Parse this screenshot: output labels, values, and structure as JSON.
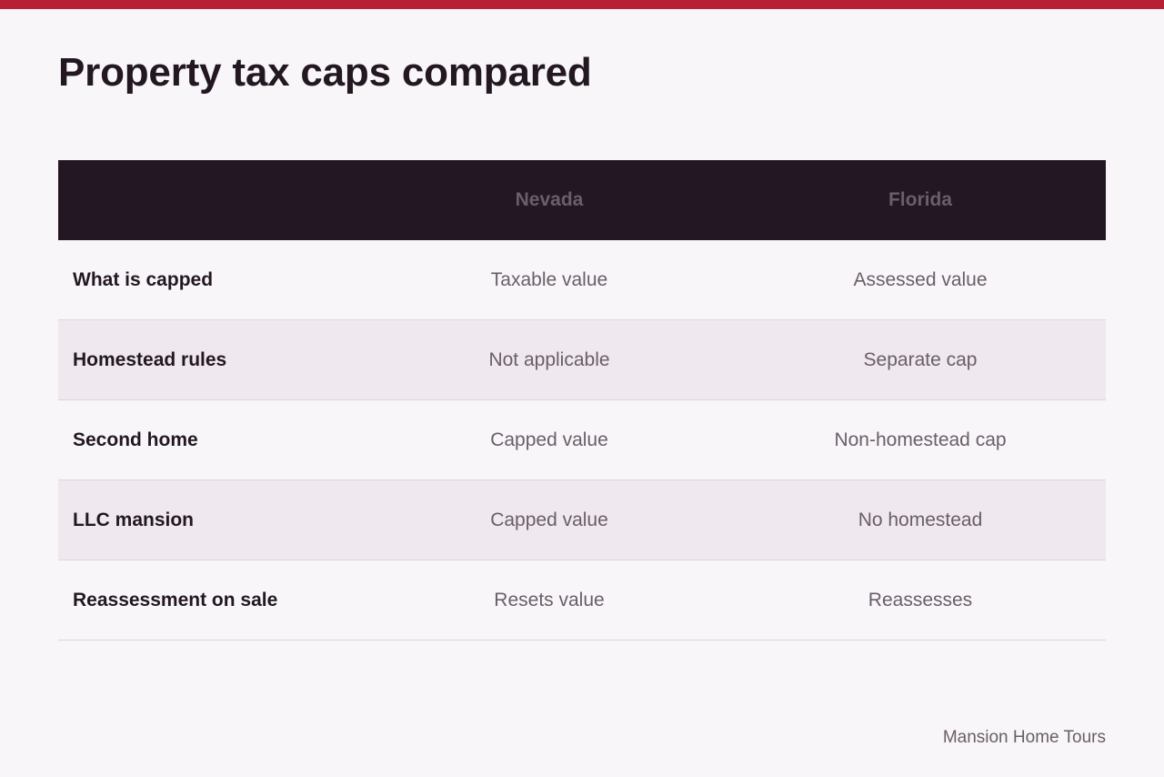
{
  "header": {
    "title": "Property tax caps compared",
    "accent_color": "#b71f34"
  },
  "table": {
    "columns": [
      "",
      "Nevada",
      "Florida"
    ],
    "rows": [
      {
        "label": "What is capped",
        "nevada": "Taxable value",
        "florida": "Assessed value"
      },
      {
        "label": "Homestead rules",
        "nevada": "Not applicable",
        "florida": "Separate cap"
      },
      {
        "label": "Second home",
        "nevada": "Capped value",
        "florida": "Non-homestead cap"
      },
      {
        "label": "LLC mansion",
        "nevada": "Capped value",
        "florida": "No homestead"
      },
      {
        "label": "Reassessment on sale",
        "nevada": "Resets value",
        "florida": "Reassesses"
      }
    ],
    "header_bg": "#241724",
    "alt_row_bg": "#efe8ee"
  },
  "footer": {
    "source": "Mansion Home Tours"
  }
}
